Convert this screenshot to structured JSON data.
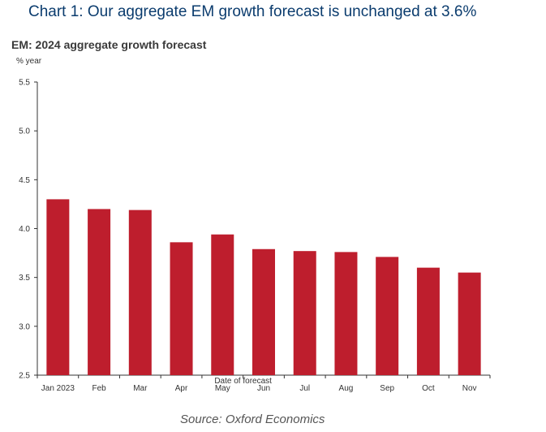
{
  "heading": "Chart 1: Our aggregate EM growth forecast is unchanged at 3.6%",
  "source": "Source: Oxford Economics",
  "chart_data": {
    "type": "bar",
    "title": "EM: 2024 aggregate growth forecast",
    "ylabel": "% year",
    "xlabel": "Date of forecast",
    "categories": [
      "Jan 2023",
      "Feb",
      "Mar",
      "Apr",
      "May",
      "Jun",
      "Jul",
      "Aug",
      "Sep",
      "Oct",
      "Nov"
    ],
    "values": [
      4.3,
      4.2,
      4.19,
      3.86,
      3.94,
      3.79,
      3.77,
      3.76,
      3.71,
      3.6,
      3.55
    ],
    "ylim": [
      2.5,
      5.5
    ],
    "yticks": [
      "2.5",
      "3.0",
      "3.5",
      "4.0",
      "4.5",
      "5.0",
      "5.5"
    ],
    "bar_color": "#be1e2d",
    "grid": false,
    "legend": "none"
  }
}
